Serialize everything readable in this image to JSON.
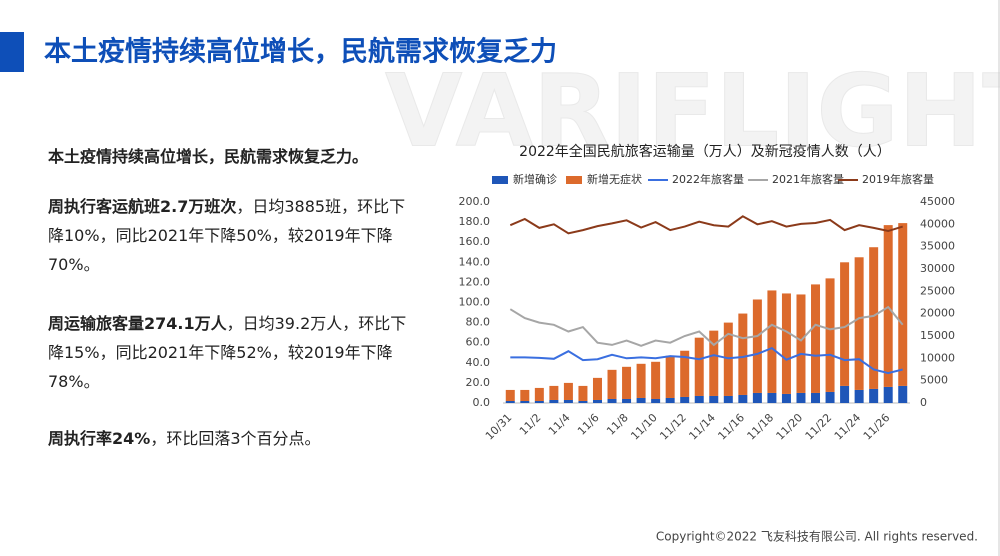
{
  "page": {
    "title": "本土疫情持续高位增长，民航需求恢复乏力",
    "watermark": "VARIFLIGHT",
    "footer": "Copyright©2022 飞友科技有限公司. All rights reserved.",
    "heading": "本土疫情持续高位增长，民航需求恢复乏力。",
    "paragraphs": [
      {
        "bold": "周执行客运航班2.7万班次",
        "rest": "，日均3885班，环比下降10%，同比2021年下降50%，较2019年下降70%。"
      },
      {
        "bold": "周运输旅客量274.1万人",
        "rest": "，日均39.2万人，环比下降15%，同比2021年下降52%，较2019年下降78%。"
      },
      {
        "bold": "周执行率24%",
        "rest": "，环比回落3个百分点。"
      }
    ]
  },
  "chart_data": {
    "type": "bar-line",
    "title": "2022年全国民航旅客运输量（万人）及新冠疫情人数（人）",
    "categories": [
      "10/31",
      null,
      "11/2",
      null,
      "11/4",
      null,
      "11/6",
      null,
      "11/8",
      null,
      "11/10",
      null,
      "11/12",
      null,
      "11/14",
      null,
      "11/16",
      null,
      "11/18",
      null,
      "11/20",
      null,
      "11/22",
      null,
      "11/24",
      null,
      "11/26",
      null
    ],
    "series": [
      {
        "name": "新增确诊",
        "type": "bar",
        "color": "#1f56b8",
        "values": [
          2,
          2,
          2,
          3,
          3,
          2,
          3,
          4,
          4,
          5,
          4,
          5,
          6,
          7,
          7,
          7,
          8,
          10,
          10,
          9,
          10,
          10,
          11,
          17,
          13,
          14,
          16,
          17
        ]
      },
      {
        "name": "新增无症状",
        "type": "bar",
        "color": "#dc6a2c",
        "values": [
          11,
          11,
          13,
          14,
          17,
          15,
          22,
          29,
          32,
          34,
          37,
          42,
          46,
          58,
          65,
          73,
          81,
          93,
          102,
          100,
          98,
          108,
          113,
          123,
          132,
          141,
          161,
          162
        ]
      },
      {
        "name": "2022年旅客量",
        "type": "line",
        "axis": "y2",
        "color": "#3a6fe0",
        "values": [
          10200,
          10200,
          10100,
          9900,
          11600,
          9600,
          9800,
          10800,
          10000,
          10200,
          10000,
          10500,
          10300,
          9800,
          10700,
          10000,
          10300,
          11000,
          12300,
          9700,
          11000,
          10600,
          10800,
          9600,
          9800,
          7500,
          6700,
          7500
        ]
      },
      {
        "name": "2021年旅客量",
        "type": "line",
        "axis": "y2",
        "color": "#a6a6a6",
        "values": [
          21000,
          19000,
          18000,
          17500,
          16000,
          17000,
          13500,
          13000,
          14000,
          12800,
          14000,
          13500,
          15000,
          16000,
          13000,
          15500,
          14500,
          15000,
          17500,
          16000,
          14000,
          17500,
          16500,
          17000,
          19000,
          19500,
          21500,
          17500
        ]
      },
      {
        "name": "2019年旅客量",
        "type": "line",
        "axis": "y2",
        "color": "#8b3a1a",
        "values": [
          39800,
          41200,
          39200,
          40000,
          38000,
          38700,
          39600,
          40200,
          40900,
          39300,
          40500,
          38700,
          39500,
          40600,
          39800,
          39500,
          41800,
          40000,
          40700,
          39500,
          40100,
          40300,
          41000,
          38700,
          39800,
          39200,
          38500,
          39500
        ]
      }
    ],
    "ylim": [
      0,
      200
    ],
    "yticks": [
      {
        "value": 0,
        "label": "0.0"
      },
      {
        "value": 20,
        "label": "20.0"
      },
      {
        "value": 40,
        "label": "40.0"
      },
      {
        "value": 60,
        "label": "60.0"
      },
      {
        "value": 80,
        "label": "80.0"
      },
      {
        "value": 100,
        "label": "100.0"
      },
      {
        "value": 120,
        "label": "120.0"
      },
      {
        "value": 140,
        "label": "140.0"
      },
      {
        "value": 160,
        "label": "160.0"
      },
      {
        "value": 180,
        "label": "180.0"
      },
      {
        "value": 200,
        "label": "200.0"
      }
    ],
    "y2lim": [
      0,
      45000
    ],
    "y2ticks": [
      0,
      5000,
      10000,
      15000,
      20000,
      25000,
      30000,
      35000,
      40000,
      45000
    ],
    "legend": "top"
  }
}
